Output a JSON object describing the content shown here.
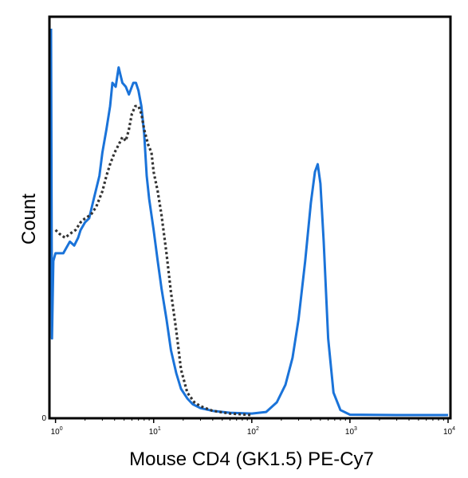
{
  "chart_data": {
    "type": "line",
    "title": "",
    "xlabel": "Mouse CD4 (GK1.5) PE-Cy7",
    "ylabel": "Count",
    "x_scale": "log",
    "xlim": [
      0.9,
      10000
    ],
    "ylim": [
      0,
      100
    ],
    "grid": false,
    "legend": "none",
    "x_ticks": [
      {
        "value": 1,
        "base": "10",
        "exp": "0"
      },
      {
        "value": 10,
        "base": "10",
        "exp": "1"
      },
      {
        "value": 100,
        "base": "10",
        "exp": "2"
      },
      {
        "value": 1000,
        "base": "10",
        "exp": "3"
      },
      {
        "value": 10000,
        "base": "10",
        "exp": "4"
      }
    ],
    "y_ticks": [
      {
        "value": 0,
        "label": "0"
      }
    ],
    "series": [
      {
        "style": "solid",
        "color": "#1a73d9",
        "points": [
          [
            0.9,
            100
          ],
          [
            0.92,
            20
          ],
          [
            0.95,
            40
          ],
          [
            1.0,
            42
          ],
          [
            1.1,
            42
          ],
          [
            1.2,
            42
          ],
          [
            1.4,
            45
          ],
          [
            1.55,
            44
          ],
          [
            1.7,
            46
          ],
          [
            1.8,
            48
          ],
          [
            2.0,
            50
          ],
          [
            2.2,
            51
          ],
          [
            2.4,
            55
          ],
          [
            2.8,
            62
          ],
          [
            3.0,
            68
          ],
          [
            3.3,
            74
          ],
          [
            3.6,
            80
          ],
          [
            3.8,
            86
          ],
          [
            4.1,
            85
          ],
          [
            4.4,
            90
          ],
          [
            4.8,
            86
          ],
          [
            5.2,
            85
          ],
          [
            5.6,
            83
          ],
          [
            6.2,
            86
          ],
          [
            6.6,
            86
          ],
          [
            7.0,
            84
          ],
          [
            7.5,
            80
          ],
          [
            8.0,
            73
          ],
          [
            8.5,
            62
          ],
          [
            9.0,
            56
          ],
          [
            10.0,
            48
          ],
          [
            11.0,
            40
          ],
          [
            12.0,
            33
          ],
          [
            13.5,
            25
          ],
          [
            15.0,
            17
          ],
          [
            17.0,
            11
          ],
          [
            19.0,
            7
          ],
          [
            22.0,
            4.5
          ],
          [
            25.0,
            3
          ],
          [
            30.0,
            2
          ],
          [
            40.0,
            1.3
          ],
          [
            60.0,
            0.8
          ],
          [
            100.0,
            0.6
          ],
          [
            140.0,
            1.0
          ],
          [
            180.0,
            3.5
          ],
          [
            220.0,
            8
          ],
          [
            260.0,
            15
          ],
          [
            300.0,
            25
          ],
          [
            350.0,
            40
          ],
          [
            400.0,
            55
          ],
          [
            440.0,
            63
          ],
          [
            470.0,
            65
          ],
          [
            500.0,
            60
          ],
          [
            540.0,
            45
          ],
          [
            600.0,
            20
          ],
          [
            680.0,
            6
          ],
          [
            800.0,
            1.5
          ],
          [
            1000.0,
            0.3
          ],
          [
            3000.0,
            0.2
          ],
          [
            10000.0,
            0.2
          ]
        ]
      },
      {
        "style": "dotted",
        "color": "#333333",
        "points": [
          [
            1.0,
            48
          ],
          [
            1.1,
            47
          ],
          [
            1.25,
            46
          ],
          [
            1.4,
            47
          ],
          [
            1.6,
            48
          ],
          [
            1.8,
            50
          ],
          [
            2.0,
            51
          ],
          [
            2.3,
            52
          ],
          [
            2.6,
            54
          ],
          [
            3.0,
            58
          ],
          [
            3.3,
            62
          ],
          [
            3.6,
            65
          ],
          [
            4.0,
            68
          ],
          [
            4.4,
            70
          ],
          [
            4.8,
            72
          ],
          [
            5.2,
            71
          ],
          [
            5.6,
            74
          ],
          [
            6.0,
            78
          ],
          [
            6.5,
            80
          ],
          [
            7.0,
            80
          ],
          [
            7.5,
            78
          ],
          [
            8.0,
            74
          ],
          [
            8.8,
            70
          ],
          [
            9.5,
            68
          ],
          [
            10.0,
            63
          ],
          [
            11.0,
            58
          ],
          [
            12.0,
            52
          ],
          [
            13.5,
            42
          ],
          [
            15.0,
            32
          ],
          [
            17.0,
            22
          ],
          [
            19.0,
            12
          ],
          [
            22.0,
            6
          ],
          [
            26.0,
            3.5
          ],
          [
            30.0,
            2.5
          ],
          [
            40.0,
            1.3
          ],
          [
            60.0,
            0.6
          ],
          [
            100.0,
            0.2
          ]
        ]
      }
    ]
  }
}
